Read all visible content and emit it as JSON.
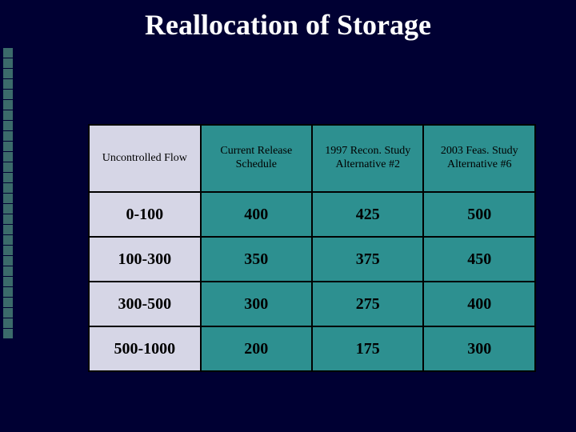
{
  "title": "Reallocation of  Storage",
  "colors": {
    "background": "#000033",
    "header_first_bg": "#d6d6e6",
    "header_teal_bg": "#2d9090",
    "cell_first_bg": "#d6d6e6",
    "cell_teal_bg": "#2d9090",
    "border": "#000000",
    "title_text": "#ffffff",
    "cell_text": "#000000",
    "sidebar_square": "#3b6b6b"
  },
  "typography": {
    "title_fontsize": 36,
    "header_fontsize": 14,
    "cell_fontsize": 20,
    "font_family": "Times New Roman"
  },
  "table": {
    "columns": [
      "Uncontrolled Flow",
      "Current Release Schedule",
      "1997 Recon. Study Alternative #2",
      "2003 Feas. Study Alternative #6"
    ],
    "rows": [
      [
        "0-100",
        "400",
        "425",
        "500"
      ],
      [
        "100-300",
        "350",
        "375",
        "450"
      ],
      [
        "300-500",
        "300",
        "275",
        "400"
      ],
      [
        "500-1000",
        "200",
        "175",
        "300"
      ]
    ],
    "column_styles": [
      "first",
      "teal",
      "teal",
      "teal"
    ]
  },
  "sidebar": {
    "square_count": 28
  }
}
